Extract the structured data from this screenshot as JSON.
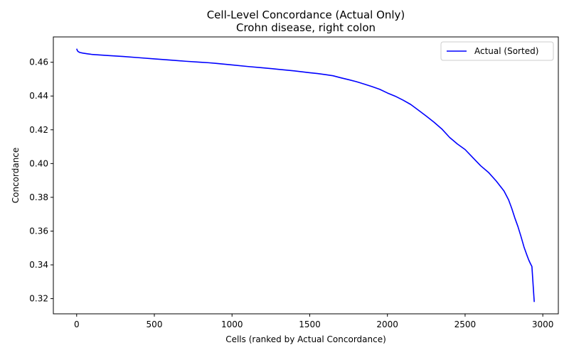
{
  "chart_data": {
    "type": "line",
    "title": "Cell-Level Concordance (Actual Only)",
    "subtitle": "Crohn disease, right colon",
    "xlabel": "Cells (ranked by Actual Concordance)",
    "ylabel": "Concordance",
    "xlim": [
      -150,
      3100
    ],
    "ylim": [
      0.311,
      0.475
    ],
    "xticks": [
      0,
      500,
      1000,
      1500,
      2000,
      2500,
      3000
    ],
    "xtick_labels": [
      "0",
      "500",
      "1000",
      "1500",
      "2000",
      "2500",
      "3000"
    ],
    "yticks": [
      0.32,
      0.34,
      0.36,
      0.38,
      0.4,
      0.42,
      0.44,
      0.46
    ],
    "ytick_labels": [
      "0.32",
      "0.34",
      "0.36",
      "0.38",
      "0.40",
      "0.42",
      "0.44",
      "0.46"
    ],
    "grid": false,
    "legend_position": "top-right",
    "series": [
      {
        "name": "Actual (Sorted)",
        "color": "#0000ff",
        "x": [
          0,
          5,
          10,
          20,
          40,
          70,
          100,
          150,
          200,
          300,
          400,
          500,
          600,
          700,
          800,
          850,
          900,
          1000,
          1100,
          1200,
          1300,
          1400,
          1500,
          1550,
          1600,
          1650,
          1700,
          1750,
          1800,
          1850,
          1900,
          1950,
          2000,
          2050,
          2100,
          2150,
          2200,
          2250,
          2300,
          2350,
          2400,
          2450,
          2500,
          2550,
          2600,
          2650,
          2700,
          2750,
          2780,
          2800,
          2820,
          2840,
          2860,
          2880,
          2900,
          2910,
          2920,
          2930,
          2935,
          2940,
          2945
        ],
        "values": [
          0.468,
          0.4668,
          0.4663,
          0.4658,
          0.4654,
          0.465,
          0.4646,
          0.4643,
          0.464,
          0.4634,
          0.4627,
          0.462,
          0.4613,
          0.4606,
          0.46,
          0.4597,
          0.4593,
          0.4584,
          0.4575,
          0.4567,
          0.4558,
          0.4549,
          0.4538,
          0.4533,
          0.4527,
          0.452,
          0.4508,
          0.4497,
          0.4485,
          0.4471,
          0.4456,
          0.444,
          0.4418,
          0.4399,
          0.4376,
          0.435,
          0.4316,
          0.4281,
          0.4245,
          0.4205,
          0.4155,
          0.4116,
          0.4083,
          0.4035,
          0.3987,
          0.3948,
          0.3897,
          0.3838,
          0.3785,
          0.3735,
          0.3678,
          0.3627,
          0.3567,
          0.3503,
          0.3452,
          0.3428,
          0.3408,
          0.339,
          0.332,
          0.325,
          0.318
        ]
      }
    ]
  }
}
